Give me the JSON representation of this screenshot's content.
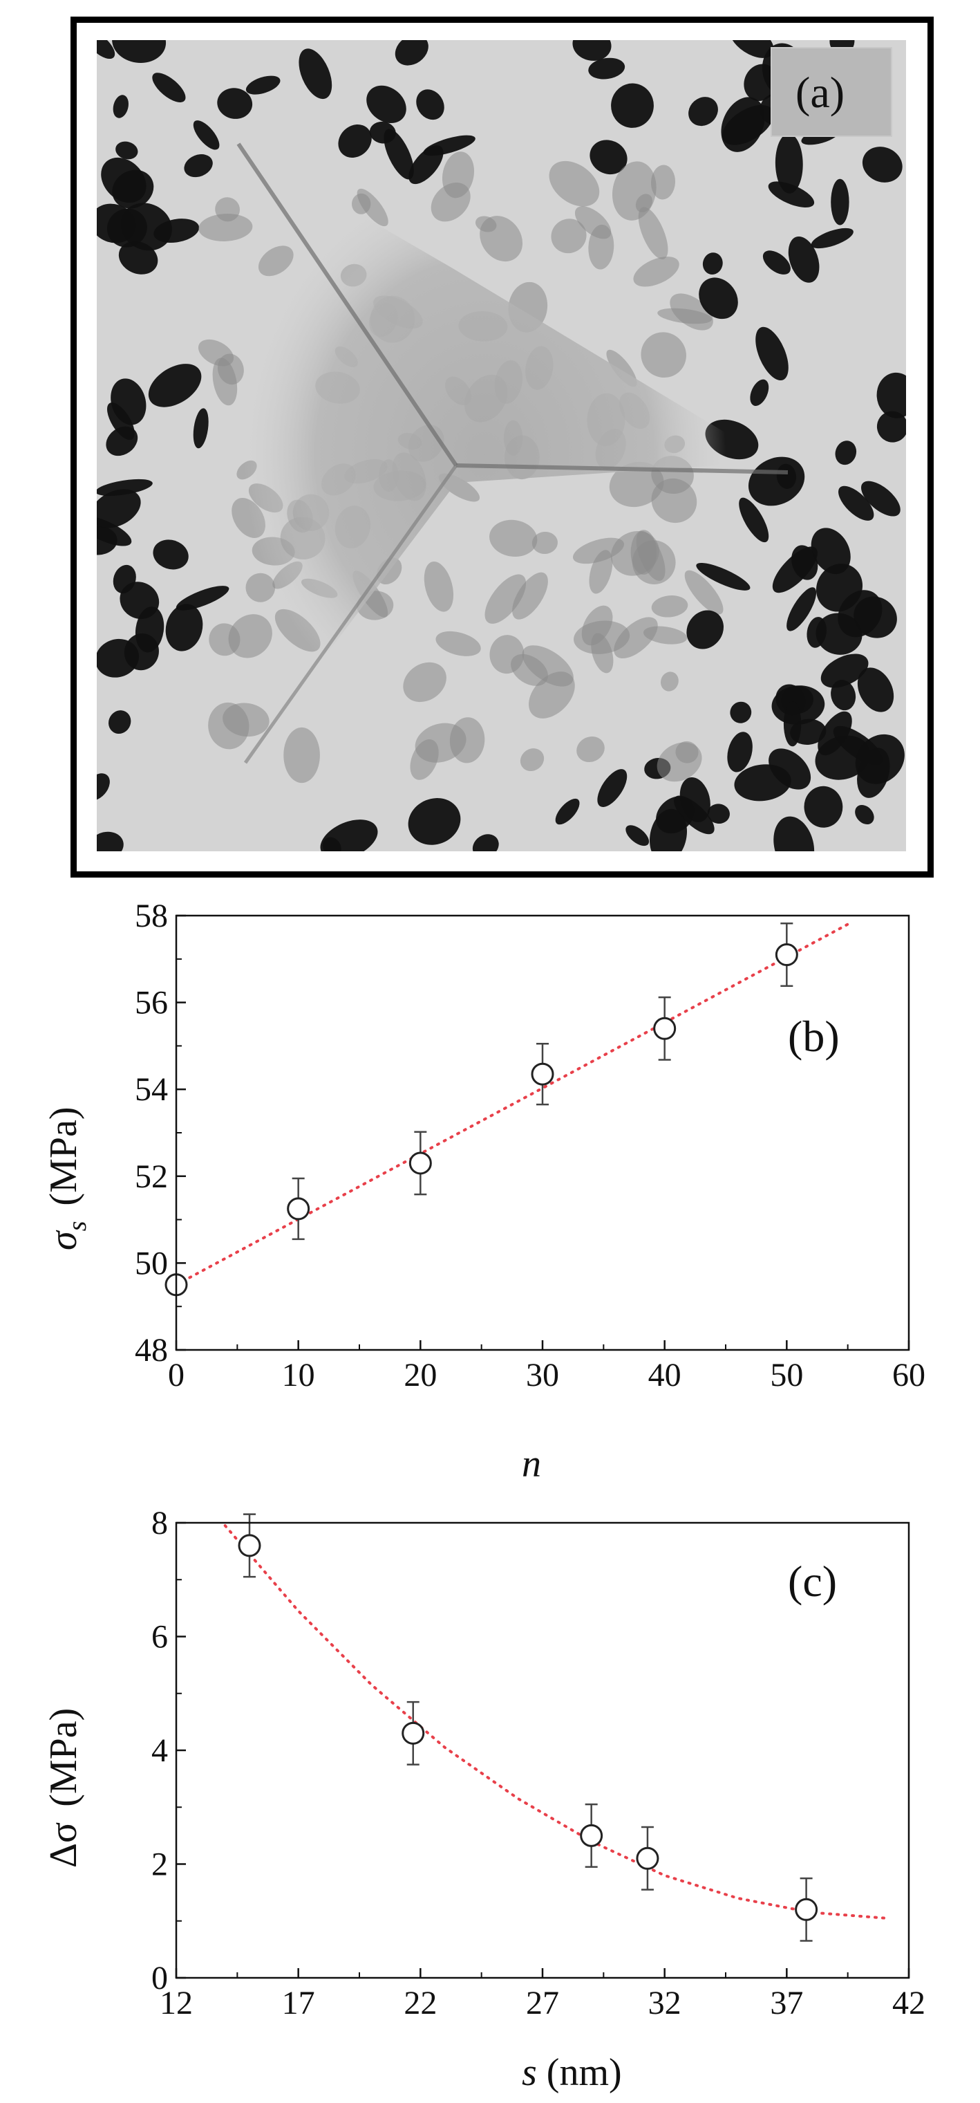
{
  "panel_a": {
    "label": "(a)"
  },
  "chart_data": [
    {
      "type": "scatter",
      "panel_label": "(b)",
      "xlabel": "n",
      "ylabel_symbol": "σ",
      "ylabel_subscript": "s",
      "ylabel_unit": "(MPa)",
      "xlim": [
        0,
        60
      ],
      "ylim": [
        48,
        58
      ],
      "xticks": [
        0,
        10,
        20,
        30,
        40,
        50,
        60
      ],
      "yticks": [
        48,
        50,
        52,
        54,
        56,
        58
      ],
      "grid": false,
      "series": [
        {
          "x": [
            0,
            10,
            20,
            30,
            40,
            50
          ],
          "y": [
            49.5,
            51.25,
            52.3,
            54.35,
            55.4,
            57.1
          ],
          "error": [
            0,
            0.7,
            0.72,
            0.7,
            0.72,
            0.72
          ]
        }
      ],
      "fit": {
        "kind": "linear",
        "x": [
          0,
          55
        ],
        "y": [
          49.5,
          57.8
        ],
        "color": "#e8404a"
      }
    },
    {
      "type": "scatter",
      "panel_label": "(c)",
      "xlabel_symbol": "s",
      "xlabel_unit": "(nm)",
      "ylabel_symbol": "Δσ",
      "ylabel_unit": "(MPa)",
      "xlim": [
        12,
        42
      ],
      "ylim": [
        0,
        8
      ],
      "xticks": [
        12,
        17,
        22,
        27,
        32,
        37,
        42
      ],
      "yticks": [
        0,
        2,
        4,
        6,
        8
      ],
      "grid": false,
      "series": [
        {
          "x": [
            15,
            21.7,
            29,
            31.3,
            37.8
          ],
          "y": [
            7.6,
            4.3,
            2.5,
            2.1,
            1.2
          ],
          "error": [
            0.55,
            0.55,
            0.55,
            0.55,
            0.55
          ]
        }
      ],
      "fit": {
        "kind": "quadratic",
        "x": [
          14,
          17,
          20,
          23,
          26,
          29,
          32,
          35,
          38,
          41
        ],
        "y": [
          7.95,
          6.45,
          5.15,
          4.05,
          3.15,
          2.4,
          1.8,
          1.4,
          1.15,
          1.05
        ],
        "color": "#e8404a"
      }
    }
  ]
}
